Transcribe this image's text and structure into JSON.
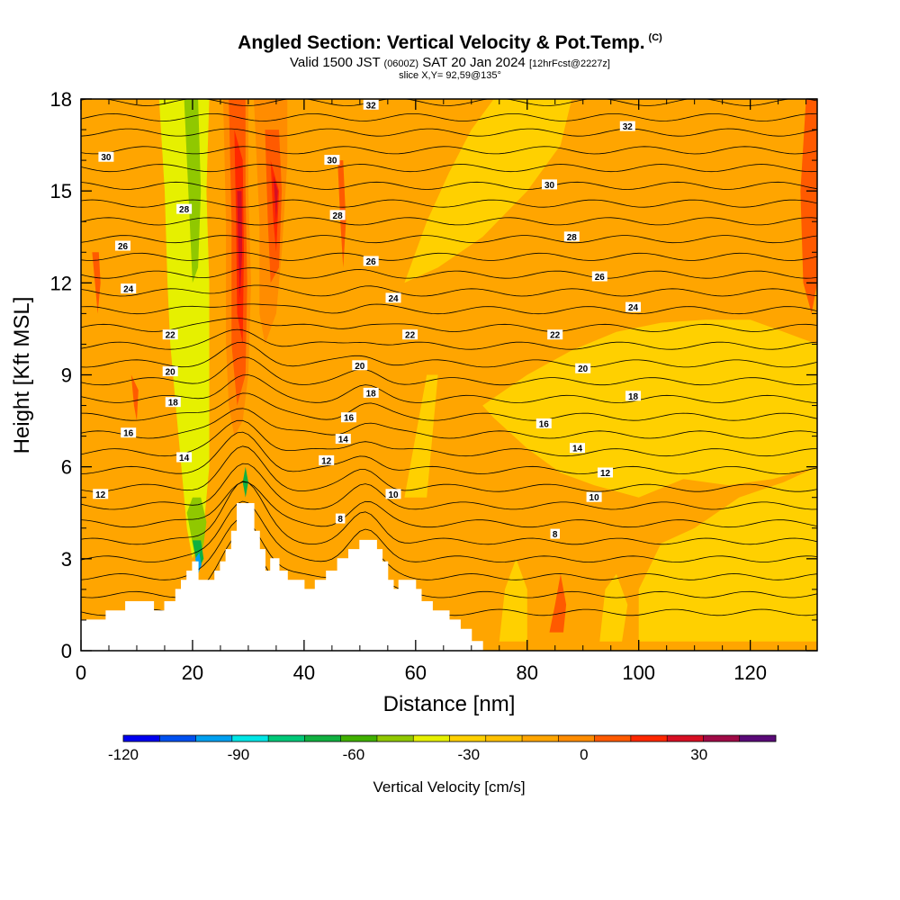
{
  "header": {
    "title": "Angled Section: Vertical Velocity & Pot.Temp.",
    "title_suffix": "(C)",
    "subtitle_valid": "Valid 1500 JST",
    "subtitle_utc": "(0600Z)",
    "subtitle_date": "SAT 20 Jan 2024",
    "subtitle_fcst": "[12hrFcst@2227z]",
    "slice": "slice X,Y= 92,59@135°"
  },
  "chart_data": {
    "type": "heatmap",
    "xlabel": "Distance [nm]",
    "ylabel": "Height [Kft MSL]",
    "xlim": [
      0,
      132
    ],
    "ylim": [
      0,
      18
    ],
    "x_ticks": [
      "0",
      "20",
      "40",
      "60",
      "80",
      "100",
      "120"
    ],
    "x_tick_values": [
      0,
      20,
      40,
      60,
      80,
      100,
      120
    ],
    "y_ticks": [
      "0",
      "3",
      "6",
      "9",
      "12",
      "15",
      "18"
    ],
    "y_tick_values": [
      0,
      3,
      6,
      9,
      12,
      15,
      18
    ],
    "colorbar": {
      "title": "Vertical Velocity [cm/s]",
      "range": [
        -120,
        50
      ],
      "step": 10,
      "tick_labels": [
        "-120",
        "-90",
        "-60",
        "-30",
        "0",
        "30"
      ],
      "tick_values": [
        -120,
        -90,
        -60,
        -30,
        0,
        30
      ],
      "colors": [
        "#0000f0",
        "#0050f0",
        "#00a0f0",
        "#00e6e6",
        "#00c878",
        "#10b040",
        "#40b000",
        "#90c800",
        "#e6f000",
        "#ffd000",
        "#ffc000",
        "#ffa500",
        "#ff8c00",
        "#ff5a00",
        "#ff2800",
        "#d70f23",
        "#a00a46",
        "#5a0a78"
      ]
    },
    "terrain_profile": [
      [
        0,
        1
      ],
      [
        4.5,
        1
      ],
      [
        4.5,
        1.3
      ],
      [
        8,
        1.3
      ],
      [
        8,
        1.6
      ],
      [
        13,
        1.6
      ],
      [
        13,
        1.3
      ],
      [
        15,
        1.3
      ],
      [
        15,
        1.6
      ],
      [
        17,
        1.6
      ],
      [
        17,
        2
      ],
      [
        18,
        2
      ],
      [
        18,
        2.3
      ],
      [
        19,
        2.3
      ],
      [
        19,
        2.6
      ],
      [
        20,
        2.6
      ],
      [
        20,
        2.9
      ],
      [
        21,
        2.9
      ],
      [
        21,
        2.3
      ],
      [
        24,
        2.3
      ],
      [
        24,
        2.6
      ],
      [
        25,
        2.6
      ],
      [
        25,
        2.9
      ],
      [
        26,
        2.9
      ],
      [
        26,
        3.3
      ],
      [
        27,
        3.3
      ],
      [
        27,
        3.9
      ],
      [
        28,
        3.9
      ],
      [
        28,
        4.8
      ],
      [
        31,
        4.8
      ],
      [
        31,
        3.9
      ],
      [
        32,
        3.9
      ],
      [
        32,
        3.3
      ],
      [
        33,
        3.3
      ],
      [
        33,
        2.6
      ],
      [
        34,
        2.6
      ],
      [
        34,
        3
      ],
      [
        35.5,
        3
      ],
      [
        35.5,
        2.6
      ],
      [
        37,
        2.6
      ],
      [
        37,
        2.3
      ],
      [
        40,
        2.3
      ],
      [
        40,
        2
      ],
      [
        42,
        2
      ],
      [
        42,
        2.3
      ],
      [
        44,
        2.3
      ],
      [
        44,
        2.6
      ],
      [
        46,
        2.6
      ],
      [
        46,
        3
      ],
      [
        48,
        3
      ],
      [
        48,
        3.3
      ],
      [
        50,
        3.3
      ],
      [
        50,
        3.6
      ],
      [
        53,
        3.6
      ],
      [
        53,
        3.3
      ],
      [
        54,
        3.3
      ],
      [
        54,
        2.9
      ],
      [
        55,
        2.9
      ],
      [
        55,
        2.3
      ],
      [
        56,
        2.3
      ],
      [
        56,
        2
      ],
      [
        57,
        2
      ],
      [
        57,
        2.3
      ],
      [
        60,
        2.3
      ],
      [
        60,
        2
      ],
      [
        61,
        2
      ],
      [
        61,
        1.6
      ],
      [
        63,
        1.6
      ],
      [
        63,
        1.3
      ],
      [
        66,
        1.3
      ],
      [
        66,
        1
      ],
      [
        68,
        1
      ],
      [
        68,
        0.7
      ],
      [
        70,
        0.7
      ],
      [
        70,
        0.3
      ],
      [
        72,
        0.3
      ],
      [
        72,
        0
      ],
      [
        0,
        0
      ]
    ],
    "field_patches": [
      {
        "value": -20,
        "points": [
          [
            100,
            0.3
          ],
          [
            100,
            2
          ],
          [
            104,
            3.5
          ],
          [
            110,
            4
          ],
          [
            118,
            5
          ],
          [
            126,
            5.5
          ],
          [
            132,
            6
          ],
          [
            132,
            0.3
          ]
        ]
      },
      {
        "value": -20,
        "points": [
          [
            72,
            8
          ],
          [
            80,
            9
          ],
          [
            88,
            9.8
          ],
          [
            96,
            10.4
          ],
          [
            104,
            10.7
          ],
          [
            112,
            10.8
          ],
          [
            120,
            10.8
          ],
          [
            126,
            10.4
          ],
          [
            132,
            10
          ],
          [
            132,
            6
          ],
          [
            124,
            5.6
          ],
          [
            116,
            5.4
          ],
          [
            108,
            5.6
          ],
          [
            100,
            5
          ],
          [
            92,
            5.4
          ],
          [
            86,
            5.8
          ],
          [
            80,
            6.6
          ],
          [
            74,
            7.6
          ]
        ]
      },
      {
        "value": -20,
        "points": [
          [
            58,
            12
          ],
          [
            62,
            14
          ],
          [
            66,
            15.6
          ],
          [
            70,
            17
          ],
          [
            74,
            18
          ],
          [
            88,
            18
          ],
          [
            86,
            16.5
          ],
          [
            80,
            15
          ],
          [
            72,
            13.5
          ],
          [
            64,
            12.5
          ]
        ]
      },
      {
        "value": -20,
        "points": [
          [
            58,
            5
          ],
          [
            60,
            7
          ],
          [
            62,
            9
          ],
          [
            64,
            9
          ],
          [
            63,
            7
          ],
          [
            62,
            5
          ]
        ]
      },
      {
        "value": -20,
        "points": [
          [
            75,
            0.3
          ],
          [
            76,
            2
          ],
          [
            78,
            3
          ],
          [
            80,
            2
          ],
          [
            80,
            0.3
          ]
        ]
      },
      {
        "value": -20,
        "points": [
          [
            93,
            0.3
          ],
          [
            94,
            2
          ],
          [
            96,
            2.5
          ],
          [
            98,
            1.5
          ],
          [
            97,
            0.3
          ]
        ]
      },
      {
        "value": -20,
        "points": [
          [
            52,
            0.3
          ],
          [
            53,
            1.5
          ],
          [
            55,
            2
          ],
          [
            56,
            1.2
          ],
          [
            56,
            0.3
          ]
        ]
      },
      {
        "value": -30,
        "points": [
          [
            14,
            18
          ],
          [
            15,
            15
          ],
          [
            15.5,
            12
          ],
          [
            16,
            10
          ],
          [
            17,
            8
          ],
          [
            18,
            6
          ],
          [
            19,
            4
          ],
          [
            20,
            3
          ],
          [
            22,
            4
          ],
          [
            23,
            6
          ],
          [
            23,
            9
          ],
          [
            23,
            12
          ],
          [
            22.5,
            15
          ],
          [
            23,
            18
          ]
        ]
      },
      {
        "value": -40,
        "points": [
          [
            18.5,
            18
          ],
          [
            19,
            16
          ],
          [
            19.5,
            14
          ],
          [
            20,
            12
          ],
          [
            21,
            12.5
          ],
          [
            21.5,
            15
          ],
          [
            21,
            18
          ]
        ]
      },
      {
        "value": -40,
        "points": [
          [
            19,
            4.5
          ],
          [
            20,
            3.5
          ],
          [
            21,
            2.6
          ],
          [
            22,
            3.5
          ],
          [
            22.5,
            4.2
          ],
          [
            21.5,
            5
          ],
          [
            20,
            5
          ]
        ]
      },
      {
        "value": -60,
        "points": [
          [
            20,
            3.6
          ],
          [
            21,
            2.6
          ],
          [
            22,
            3
          ],
          [
            21.5,
            3.6
          ]
        ]
      },
      {
        "value": -90,
        "points": [
          [
            20.5,
            3
          ],
          [
            21,
            2.5
          ],
          [
            21.6,
            2.8
          ],
          [
            21.2,
            3.2
          ]
        ]
      },
      {
        "value": -60,
        "points": [
          [
            29,
            5.5
          ],
          [
            29.5,
            6
          ],
          [
            30,
            5.5
          ],
          [
            29.5,
            5
          ]
        ]
      },
      {
        "value": 10,
        "points": [
          [
            25.5,
            18
          ],
          [
            26,
            14
          ],
          [
            26,
            10
          ],
          [
            26.5,
            8
          ],
          [
            27.5,
            7
          ],
          [
            29,
            7.5
          ],
          [
            30,
            9
          ],
          [
            30.5,
            12
          ],
          [
            30,
            15
          ],
          [
            30,
            18
          ]
        ]
      },
      {
        "value": 10,
        "points": [
          [
            31,
            18
          ],
          [
            32,
            14
          ],
          [
            32,
            11
          ],
          [
            33,
            10
          ],
          [
            35,
            11
          ],
          [
            36,
            13
          ],
          [
            37,
            16
          ],
          [
            37,
            18
          ]
        ]
      },
      {
        "value": 20,
        "points": [
          [
            26.5,
            18
          ],
          [
            27,
            14
          ],
          [
            27,
            10
          ],
          [
            28,
            8
          ],
          [
            29.5,
            9
          ],
          [
            29.8,
            12
          ],
          [
            29.5,
            15
          ],
          [
            29.5,
            18
          ]
        ]
      },
      {
        "value": 20,
        "points": [
          [
            33,
            17
          ],
          [
            33.5,
            14
          ],
          [
            34,
            12
          ],
          [
            35.5,
            12.5
          ],
          [
            36,
            15
          ],
          [
            35.5,
            17
          ]
        ]
      },
      {
        "value": 30,
        "points": [
          [
            27.5,
            17
          ],
          [
            27.8,
            14
          ],
          [
            28,
            11
          ],
          [
            29,
            10
          ],
          [
            29.2,
            13
          ],
          [
            29,
            16
          ]
        ]
      },
      {
        "value": 30,
        "points": [
          [
            34,
            16
          ],
          [
            34.5,
            14
          ],
          [
            35,
            13
          ],
          [
            35.5,
            15
          ]
        ]
      },
      {
        "value": 40,
        "points": [
          [
            28,
            15
          ],
          [
            28.2,
            13
          ],
          [
            28.5,
            11.5
          ],
          [
            28.9,
            13
          ],
          [
            28.8,
            15
          ]
        ]
      },
      {
        "value": 40,
        "points": [
          [
            34.5,
            15.5
          ],
          [
            35,
            14
          ],
          [
            35.3,
            15
          ]
        ]
      },
      {
        "value": 20,
        "points": [
          [
            130,
            18
          ],
          [
            129,
            15
          ],
          [
            129.5,
            12
          ],
          [
            131,
            11
          ],
          [
            132,
            12
          ],
          [
            132,
            18
          ]
        ]
      },
      {
        "value": 20,
        "points": [
          [
            84,
            0.6
          ],
          [
            85,
            1.5
          ],
          [
            86,
            2.5
          ],
          [
            87,
            1.5
          ],
          [
            86.5,
            0.6
          ]
        ]
      },
      {
        "value": 20,
        "points": [
          [
            46,
            16
          ],
          [
            46.5,
            14
          ],
          [
            47,
            12.5
          ],
          [
            47.5,
            14
          ],
          [
            47,
            16
          ]
        ]
      },
      {
        "value": 20,
        "points": [
          [
            2,
            13
          ],
          [
            2.5,
            12
          ],
          [
            3,
            11
          ],
          [
            3.5,
            12
          ],
          [
            3.2,
            13
          ]
        ]
      },
      {
        "value": 20,
        "points": [
          [
            9,
            9
          ],
          [
            9.5,
            8
          ],
          [
            10,
            7.5
          ],
          [
            10.3,
            8.5
          ]
        ]
      }
    ],
    "theta_contour_levels": [
      8,
      10,
      12,
      14,
      16,
      18,
      20,
      22,
      24,
      26,
      28,
      30,
      32
    ],
    "contour_labels": [
      {
        "text": "32",
        "x": 52,
        "y": 17.8
      },
      {
        "text": "32",
        "x": 98,
        "y": 17.1
      },
      {
        "text": "30",
        "x": 4.5,
        "y": 16.1
      },
      {
        "text": "30",
        "x": 45,
        "y": 16.0
      },
      {
        "text": "30",
        "x": 84,
        "y": 15.2
      },
      {
        "text": "28",
        "x": 18.5,
        "y": 14.4
      },
      {
        "text": "28",
        "x": 46,
        "y": 14.2
      },
      {
        "text": "28",
        "x": 88,
        "y": 13.5
      },
      {
        "text": "26",
        "x": 7.5,
        "y": 13.2
      },
      {
        "text": "26",
        "x": 52,
        "y": 12.7
      },
      {
        "text": "26",
        "x": 93,
        "y": 12.2
      },
      {
        "text": "24",
        "x": 8.5,
        "y": 11.8
      },
      {
        "text": "24",
        "x": 56,
        "y": 11.5
      },
      {
        "text": "24",
        "x": 99,
        "y": 11.2
      },
      {
        "text": "22",
        "x": 16,
        "y": 10.3
      },
      {
        "text": "22",
        "x": 59,
        "y": 10.3
      },
      {
        "text": "22",
        "x": 85,
        "y": 10.3
      },
      {
        "text": "20",
        "x": 16,
        "y": 9.1
      },
      {
        "text": "20",
        "x": 50,
        "y": 9.3
      },
      {
        "text": "20",
        "x": 90,
        "y": 9.2
      },
      {
        "text": "18",
        "x": 16.5,
        "y": 8.1
      },
      {
        "text": "18",
        "x": 52,
        "y": 8.4
      },
      {
        "text": "18",
        "x": 99,
        "y": 8.3
      },
      {
        "text": "16",
        "x": 8.5,
        "y": 7.1
      },
      {
        "text": "16",
        "x": 48,
        "y": 7.6
      },
      {
        "text": "16",
        "x": 83,
        "y": 7.4
      },
      {
        "text": "14",
        "x": 18.5,
        "y": 6.3
      },
      {
        "text": "14",
        "x": 47,
        "y": 6.9
      },
      {
        "text": "14",
        "x": 89,
        "y": 6.6
      },
      {
        "text": "12",
        "x": 3.5,
        "y": 5.1
      },
      {
        "text": "12",
        "x": 44,
        "y": 6.2
      },
      {
        "text": "12",
        "x": 94,
        "y": 5.8
      },
      {
        "text": "10",
        "x": 56,
        "y": 5.1
      },
      {
        "text": "10",
        "x": 92,
        "y": 5.0
      },
      {
        "text": "8",
        "x": 46.5,
        "y": 4.3
      },
      {
        "text": "8",
        "x": 85,
        "y": 3.8
      }
    ]
  }
}
